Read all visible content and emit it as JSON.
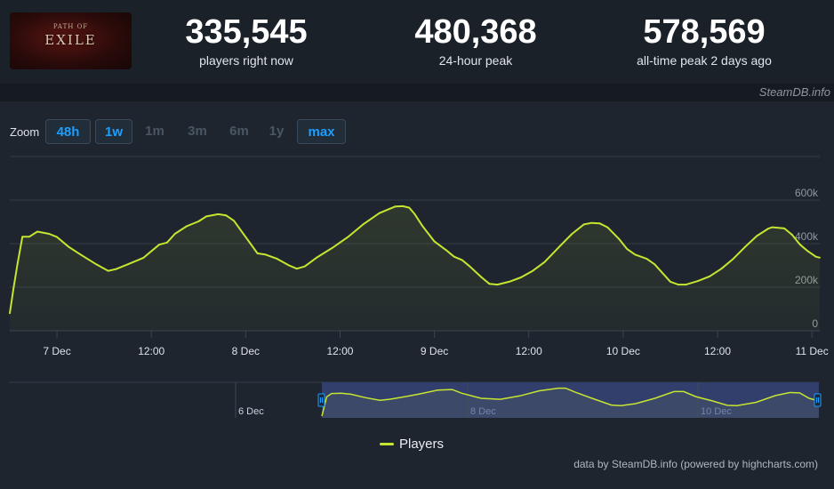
{
  "header": {
    "logo_small": "PATH OF",
    "logo_text": "EXILE",
    "stats": [
      {
        "value": "335,545",
        "label": "players right now"
      },
      {
        "value": "480,368",
        "label": "24-hour peak"
      },
      {
        "value": "578,569",
        "label": "all-time peak 2 days ago"
      }
    ],
    "watermark": "SteamDB.info"
  },
  "zoom": {
    "label": "Zoom",
    "buttons": [
      {
        "label": "48h",
        "active": true
      },
      {
        "label": "1w",
        "active": true
      },
      {
        "label": "1m",
        "active": false
      },
      {
        "label": "3m",
        "active": false
      },
      {
        "label": "6m",
        "active": false
      },
      {
        "label": "1y",
        "active": false
      },
      {
        "label": "max",
        "active": true
      }
    ]
  },
  "navigator": {
    "labels": [
      "6 Dec",
      "8 Dec",
      "10 Dec"
    ]
  },
  "legend": {
    "players": "Players"
  },
  "credit": "data by SteamDB.info (powered by highcharts.com)",
  "colors": {
    "line": "#c6e531",
    "accent": "#1a9fff",
    "background": "#1b2129"
  },
  "chart_data": {
    "type": "line",
    "series": [
      {
        "name": "Players"
      }
    ],
    "x_unit": "hours since 6 Dec 18:00 (approx.)",
    "x_ticks": [
      {
        "h": 6,
        "label": "7 Dec"
      },
      {
        "h": 18,
        "label": "12:00"
      },
      {
        "h": 30,
        "label": "8 Dec"
      },
      {
        "h": 42,
        "label": "12:00"
      },
      {
        "h": 54,
        "label": "9 Dec"
      },
      {
        "h": 66,
        "label": "12:00"
      },
      {
        "h": 78,
        "label": "10 Dec"
      },
      {
        "h": 90,
        "label": "12:00"
      },
      {
        "h": 102,
        "label": "11 Dec"
      }
    ],
    "y_ticks": [
      {
        "v": 0,
        "label": "0"
      },
      {
        "v": 200000,
        "label": "200k"
      },
      {
        "v": 400000,
        "label": "400k"
      },
      {
        "v": 600000,
        "label": "600k"
      }
    ],
    "ylim": [
      0,
      800000
    ],
    "xlim": [
      0,
      103
    ],
    "points": [
      [
        0,
        80000
      ],
      [
        0.5,
        200000
      ],
      [
        1,
        310000
      ],
      [
        1.6,
        432000
      ],
      [
        2.5,
        432000
      ],
      [
        3.5,
        455000
      ],
      [
        5,
        445000
      ],
      [
        6,
        430000
      ],
      [
        7.5,
        385000
      ],
      [
        9,
        350000
      ],
      [
        11,
        305000
      ],
      [
        12.5,
        275000
      ],
      [
        13.5,
        283000
      ],
      [
        15,
        305000
      ],
      [
        17,
        335000
      ],
      [
        19,
        395000
      ],
      [
        20,
        405000
      ],
      [
        21,
        445000
      ],
      [
        22.5,
        480000
      ],
      [
        24,
        502000
      ],
      [
        25,
        525000
      ],
      [
        26.5,
        535000
      ],
      [
        27.5,
        530000
      ],
      [
        28.5,
        505000
      ],
      [
        30,
        430000
      ],
      [
        31.5,
        355000
      ],
      [
        32.5,
        350000
      ],
      [
        34,
        330000
      ],
      [
        35.5,
        300000
      ],
      [
        36.5,
        285000
      ],
      [
        37.5,
        295000
      ],
      [
        39,
        335000
      ],
      [
        41,
        380000
      ],
      [
        43,
        430000
      ],
      [
        45,
        490000
      ],
      [
        47,
        540000
      ],
      [
        49,
        570000
      ],
      [
        50,
        572000
      ],
      [
        50.8,
        565000
      ],
      [
        51.5,
        535000
      ],
      [
        52.5,
        480000
      ],
      [
        54,
        410000
      ],
      [
        55.5,
        370000
      ],
      [
        56.5,
        340000
      ],
      [
        57.5,
        325000
      ],
      [
        58.5,
        295000
      ],
      [
        60,
        245000
      ],
      [
        61,
        215000
      ],
      [
        62,
        212000
      ],
      [
        63.5,
        225000
      ],
      [
        65,
        245000
      ],
      [
        66.5,
        275000
      ],
      [
        68,
        315000
      ],
      [
        70,
        390000
      ],
      [
        71.5,
        445000
      ],
      [
        73,
        488000
      ],
      [
        74,
        495000
      ],
      [
        75,
        493000
      ],
      [
        76,
        475000
      ],
      [
        77.5,
        420000
      ],
      [
        78.5,
        375000
      ],
      [
        79.5,
        350000
      ],
      [
        81,
        330000
      ],
      [
        82,
        305000
      ],
      [
        83,
        265000
      ],
      [
        84,
        225000
      ],
      [
        85,
        212000
      ],
      [
        86,
        212000
      ],
      [
        87.5,
        228000
      ],
      [
        89,
        250000
      ],
      [
        90.5,
        285000
      ],
      [
        92,
        330000
      ],
      [
        93.5,
        385000
      ],
      [
        95,
        435000
      ],
      [
        96.5,
        470000
      ],
      [
        97,
        475000
      ],
      [
        98.5,
        470000
      ],
      [
        99.5,
        440000
      ],
      [
        100.5,
        395000
      ],
      [
        101.5,
        365000
      ],
      [
        102.5,
        340000
      ],
      [
        103,
        335545
      ]
    ],
    "navigator_points": [
      [
        0,
        0.05
      ],
      [
        1,
        0.62
      ],
      [
        2,
        0.72
      ],
      [
        4,
        0.73
      ],
      [
        6,
        0.7
      ],
      [
        9,
        0.6
      ],
      [
        12,
        0.52
      ],
      [
        14,
        0.55
      ],
      [
        17,
        0.62
      ],
      [
        20,
        0.7
      ],
      [
        24,
        0.82
      ],
      [
        27,
        0.84
      ],
      [
        29,
        0.73
      ],
      [
        33,
        0.58
      ],
      [
        37,
        0.55
      ],
      [
        41,
        0.65
      ],
      [
        45,
        0.8
      ],
      [
        49,
        0.88
      ],
      [
        50.5,
        0.88
      ],
      [
        52.5,
        0.76
      ],
      [
        56,
        0.58
      ],
      [
        60,
        0.38
      ],
      [
        62,
        0.36
      ],
      [
        65,
        0.42
      ],
      [
        69,
        0.58
      ],
      [
        73,
        0.78
      ],
      [
        75,
        0.78
      ],
      [
        77.5,
        0.63
      ],
      [
        81,
        0.5
      ],
      [
        84,
        0.37
      ],
      [
        86,
        0.36
      ],
      [
        90,
        0.46
      ],
      [
        94,
        0.66
      ],
      [
        97,
        0.75
      ],
      [
        99,
        0.74
      ],
      [
        101,
        0.58
      ],
      [
        103,
        0.5
      ]
    ]
  }
}
